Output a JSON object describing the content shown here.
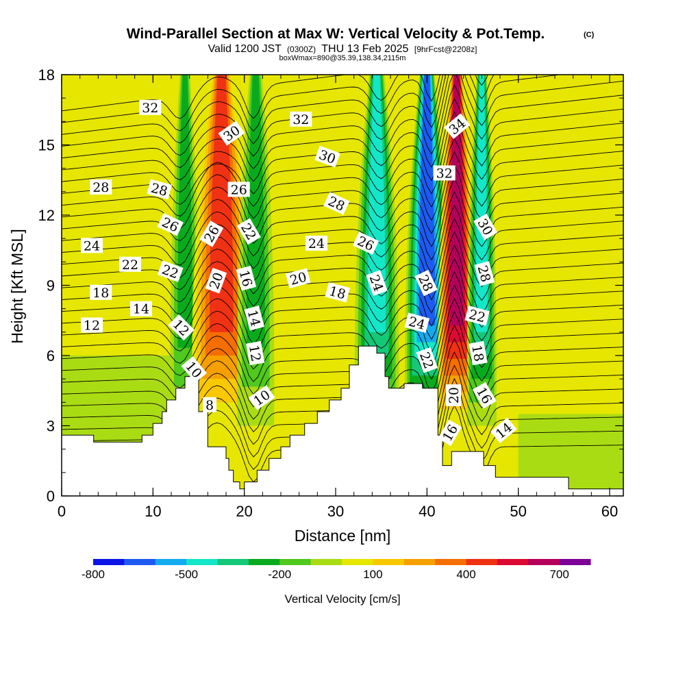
{
  "title": {
    "main": "Wind-Parallel Section at Max W: Vertical Velocity & Pot.Temp.",
    "copyright": "(C)",
    "valid_prefix": "Valid 1200 JST",
    "valid_utc": "(0300Z)",
    "valid_date": "THU 13 Feb 2025",
    "forecast": "[9hrFcst@2208z]",
    "box": "boxWmax=890@35.39,138.34,2115m"
  },
  "chart_data": {
    "type": "heatmap",
    "xlabel": "Distance [nm]",
    "ylabel": "Height [Kft MSL]",
    "xlim": [
      0,
      61.5
    ],
    "ylim": [
      0,
      18
    ],
    "x_ticks": [
      0,
      10,
      20,
      30,
      40,
      50,
      60
    ],
    "y_ticks": [
      0,
      3,
      6,
      9,
      12,
      15,
      18
    ],
    "colorbar": {
      "label": "Vertical Velocity [cm/s]",
      "tick_labels": [
        {
          "value": -800,
          "text": "-800"
        },
        {
          "value": -500,
          "text": "-500"
        },
        {
          "value": -200,
          "text": "-200"
        },
        {
          "value": 100,
          "text": "100"
        },
        {
          "value": 400,
          "text": "400"
        },
        {
          "value": 700,
          "text": "700"
        }
      ],
      "levels": [
        -800,
        -700,
        -600,
        -500,
        -400,
        -300,
        -200,
        -100,
        0,
        100,
        200,
        300,
        400,
        500,
        600,
        700,
        800
      ],
      "colors": [
        "#0a14e6",
        "#1e5af0",
        "#14aaf0",
        "#14e6c8",
        "#14c878",
        "#0aaa1e",
        "#50c81e",
        "#aadc14",
        "#e6e600",
        "#fac800",
        "#f5a000",
        "#f56e00",
        "#f03214",
        "#dc0a32",
        "#b4005a",
        "#7d0096"
      ]
    },
    "vertical_velocity_cells": [
      {
        "x_range": [
          0,
          11
        ],
        "w": 0
      },
      {
        "x_range": [
          12.5,
          14.5
        ],
        "w": -210
      },
      {
        "x_range": [
          15.5,
          19.5
        ],
        "w": 420
      },
      {
        "x_range": [
          20,
          22.5
        ],
        "w": -220
      },
      {
        "x_range": [
          23,
          33
        ],
        "w": 0
      },
      {
        "x_range": [
          33,
          36
        ],
        "w": -420
      },
      {
        "x_range": [
          38.5,
          41.5
        ],
        "w": -600
      },
      {
        "x_range": [
          42,
          44.5
        ],
        "w": 600
      },
      {
        "x_range": [
          45,
          47
        ],
        "w": -350
      },
      {
        "x_range": [
          48,
          61.5
        ],
        "w": 0
      }
    ],
    "theta_contour_labels": [
      {
        "text": "32",
        "x": 9.7,
        "y": 16.6,
        "angle": 0
      },
      {
        "text": "30",
        "x": 18.6,
        "y": 15.5,
        "angle": -35
      },
      {
        "text": "32",
        "x": 26.2,
        "y": 16.1,
        "angle": 0
      },
      {
        "text": "34",
        "x": 43.3,
        "y": 15.8,
        "angle": -40
      },
      {
        "text": "30",
        "x": 29.1,
        "y": 14.5,
        "angle": 20
      },
      {
        "text": "32",
        "x": 41.9,
        "y": 13.8,
        "angle": 0
      },
      {
        "text": "28",
        "x": 4.3,
        "y": 13.2,
        "angle": 0
      },
      {
        "text": "28",
        "x": 10.7,
        "y": 13.1,
        "angle": 15
      },
      {
        "text": "26",
        "x": 19.4,
        "y": 13.1,
        "angle": 0
      },
      {
        "text": "28",
        "x": 30.1,
        "y": 12.5,
        "angle": 25
      },
      {
        "text": "26",
        "x": 11.9,
        "y": 11.6,
        "angle": 25
      },
      {
        "text": "26",
        "x": 16.4,
        "y": 11.2,
        "angle": -60
      },
      {
        "text": "22",
        "x": 20.5,
        "y": 11.3,
        "angle": 60
      },
      {
        "text": "30",
        "x": 46.4,
        "y": 11.5,
        "angle": 60
      },
      {
        "text": "24",
        "x": 3.3,
        "y": 10.7,
        "angle": 0
      },
      {
        "text": "24",
        "x": 27.9,
        "y": 10.8,
        "angle": 0
      },
      {
        "text": "26",
        "x": 33.3,
        "y": 10.8,
        "angle": 25
      },
      {
        "text": "22",
        "x": 7.5,
        "y": 9.9,
        "angle": 0
      },
      {
        "text": "22",
        "x": 11.9,
        "y": 9.6,
        "angle": 20
      },
      {
        "text": "20",
        "x": 16.9,
        "y": 9.2,
        "angle": -70
      },
      {
        "text": "16",
        "x": 20.2,
        "y": 9.3,
        "angle": 75
      },
      {
        "text": "20",
        "x": 25.9,
        "y": 9.3,
        "angle": -15
      },
      {
        "text": "24",
        "x": 34.5,
        "y": 9.1,
        "angle": 70
      },
      {
        "text": "28",
        "x": 39.9,
        "y": 9.1,
        "angle": 65
      },
      {
        "text": "28",
        "x": 46.3,
        "y": 9.5,
        "angle": 75
      },
      {
        "text": "18",
        "x": 4.3,
        "y": 8.7,
        "angle": 0
      },
      {
        "text": "18",
        "x": 30.2,
        "y": 8.7,
        "angle": 15
      },
      {
        "text": "14",
        "x": 8.7,
        "y": 8.0,
        "angle": 0
      },
      {
        "text": "14",
        "x": 21.1,
        "y": 7.6,
        "angle": 75
      },
      {
        "text": "22",
        "x": 45.5,
        "y": 7.7,
        "angle": 15
      },
      {
        "text": "12",
        "x": 3.3,
        "y": 7.3,
        "angle": 0
      },
      {
        "text": "24",
        "x": 38.9,
        "y": 7.4,
        "angle": 15
      },
      {
        "text": "12",
        "x": 13.1,
        "y": 7.2,
        "angle": 45
      },
      {
        "text": "18",
        "x": 45.6,
        "y": 6.1,
        "angle": 80
      },
      {
        "text": "12",
        "x": 21.2,
        "y": 6.1,
        "angle": 80
      },
      {
        "text": "22",
        "x": 40.0,
        "y": 5.8,
        "angle": 70
      },
      {
        "text": "10",
        "x": 14.5,
        "y": 5.4,
        "angle": 50
      },
      {
        "text": "20",
        "x": 42.9,
        "y": 4.3,
        "angle": -90
      },
      {
        "text": "16",
        "x": 46.3,
        "y": 4.3,
        "angle": 60
      },
      {
        "text": "10",
        "x": 21.9,
        "y": 4.2,
        "angle": -35
      },
      {
        "text": "8",
        "x": 16.2,
        "y": 3.9,
        "angle": 0
      },
      {
        "text": "14",
        "x": 48.4,
        "y": 2.8,
        "angle": -40
      },
      {
        "text": "16",
        "x": 42.5,
        "y": 2.7,
        "angle": -60
      }
    ],
    "terrain": [
      [
        0,
        2.6
      ],
      [
        3.5,
        2.6
      ],
      [
        3.5,
        2.3
      ],
      [
        8.8,
        2.3
      ],
      [
        8.8,
        2.6
      ],
      [
        10,
        2.6
      ],
      [
        10,
        3.1
      ],
      [
        11,
        3.1
      ],
      [
        11,
        3.6
      ],
      [
        11.5,
        3.6
      ],
      [
        11.5,
        4.1
      ],
      [
        12.5,
        4.1
      ],
      [
        12.5,
        4.6
      ],
      [
        13.5,
        4.6
      ],
      [
        13.5,
        5.1
      ],
      [
        15,
        5.1
      ],
      [
        15,
        3.6
      ],
      [
        16,
        3.6
      ],
      [
        16,
        2.1
      ],
      [
        18,
        2.1
      ],
      [
        18,
        1.6
      ],
      [
        18.3,
        1.6
      ],
      [
        18.3,
        1.1
      ],
      [
        18.8,
        1.1
      ],
      [
        18.8,
        0.6
      ],
      [
        19.5,
        0.6
      ],
      [
        19.5,
        0.3
      ],
      [
        20,
        0.3
      ],
      [
        20,
        0.6
      ],
      [
        21.4,
        0.6
      ],
      [
        21.4,
        1.1
      ],
      [
        22.7,
        1.1
      ],
      [
        22.7,
        1.6
      ],
      [
        24,
        1.6
      ],
      [
        24,
        2.1
      ],
      [
        25,
        2.1
      ],
      [
        25,
        2.6
      ],
      [
        26.6,
        2.6
      ],
      [
        26.6,
        3.1
      ],
      [
        28,
        3.1
      ],
      [
        28,
        3.6
      ],
      [
        29.3,
        3.6
      ],
      [
        29.3,
        4.1
      ],
      [
        30.6,
        4.1
      ],
      [
        30.6,
        4.6
      ],
      [
        31.5,
        4.6
      ],
      [
        31.5,
        5.6
      ],
      [
        32.5,
        5.6
      ],
      [
        32.5,
        6.4
      ],
      [
        34.5,
        6.4
      ],
      [
        34.5,
        6.1
      ],
      [
        35.4,
        6.1
      ],
      [
        35.4,
        5.1
      ],
      [
        35.8,
        5.1
      ],
      [
        35.8,
        4.6
      ],
      [
        37.5,
        4.6
      ],
      [
        37.5,
        4.8
      ],
      [
        39.5,
        4.8
      ],
      [
        39.5,
        4.6
      ],
      [
        41.2,
        4.6
      ],
      [
        41.2,
        2.6
      ],
      [
        41.7,
        2.6
      ],
      [
        41.7,
        1.3
      ],
      [
        42.7,
        1.3
      ],
      [
        42.7,
        1.9
      ],
      [
        46.2,
        1.9
      ],
      [
        46.2,
        1.3
      ],
      [
        47.5,
        1.3
      ],
      [
        47.5,
        0.8
      ],
      [
        55.5,
        0.8
      ],
      [
        55.5,
        0.3
      ],
      [
        61.5,
        0.3
      ],
      [
        61.5,
        0
      ],
      [
        0,
        0
      ]
    ]
  }
}
